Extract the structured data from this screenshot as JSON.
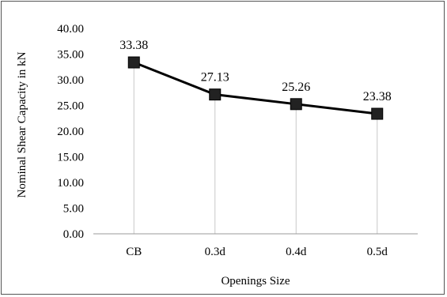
{
  "chart_data": {
    "type": "line",
    "title": "",
    "xlabel": "Openings Size",
    "ylabel": "Nominal Shear Capacity in kN",
    "categories": [
      "CB",
      "0.3d",
      "0.4d",
      "0.5d"
    ],
    "series": [
      {
        "values": [
          33.38,
          27.13,
          25.26,
          23.38
        ],
        "data_labels": [
          "33.38",
          "27.13",
          "25.26",
          "23.38"
        ]
      }
    ],
    "ylim": [
      0,
      40
    ],
    "yticks": [
      "0.00",
      "5.00",
      "10.00",
      "15.00",
      "20.00",
      "25.00",
      "30.00",
      "35.00",
      "40.00"
    ],
    "grid": "vertical drop lines",
    "legend": "none",
    "colors": {
      "line": "#000000",
      "marker": "#222222",
      "dropline": "#c8c8c8"
    }
  }
}
